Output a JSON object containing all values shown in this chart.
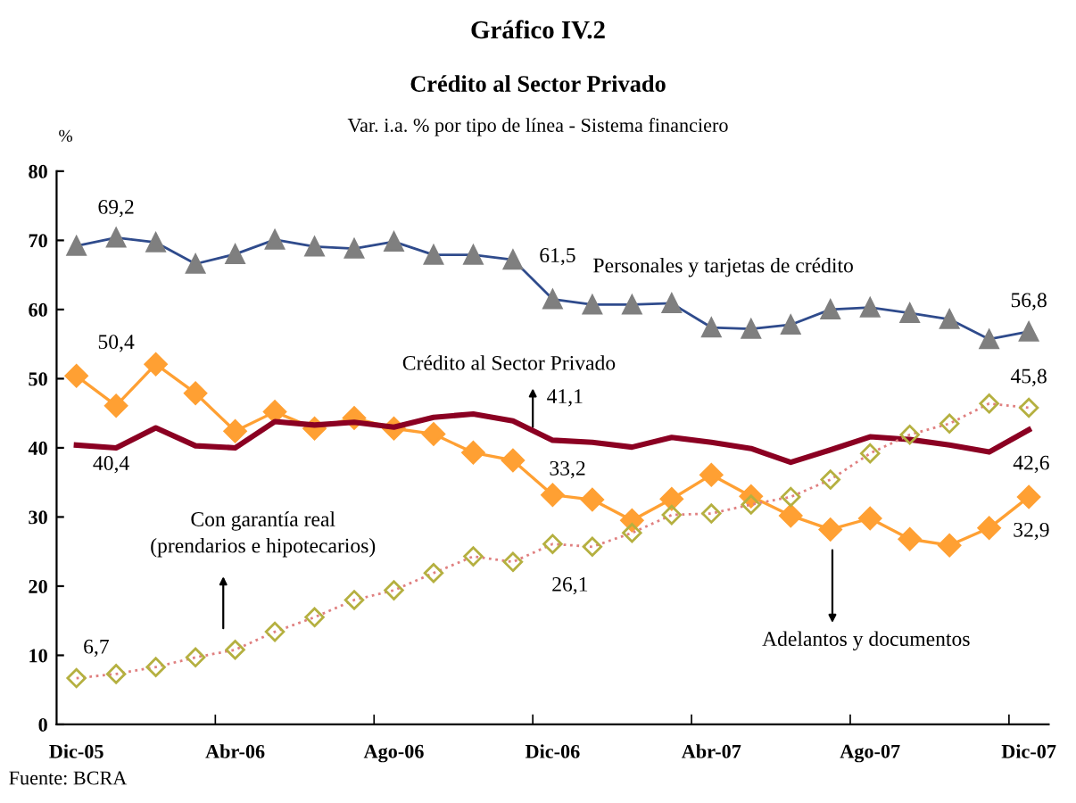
{
  "chart_data": {
    "type": "line",
    "title": "Gráfico IV.2",
    "subtitle": [
      "Crédito al Sector Privado",
      "Var. i.a. % por tipo de línea - Sistema financiero"
    ],
    "ylabel": "%",
    "categories": [
      "Dic-05",
      null,
      null,
      null,
      "Abr-06",
      null,
      null,
      null,
      "Ago-06",
      null,
      null,
      null,
      "Dic-06",
      null,
      null,
      null,
      "Abr-07",
      null,
      null,
      null,
      "Ago-07",
      null,
      null,
      null,
      "Dic-07"
    ],
    "ylim": [
      0,
      80
    ],
    "yticks": [
      0,
      10,
      20,
      30,
      40,
      50,
      60,
      70,
      80
    ],
    "grid": false,
    "legend": false,
    "series": [
      {
        "name": "Personales y tarjetas de crédito",
        "color": "#2f4b8c",
        "marker": "triangle",
        "line_style": "solid",
        "values": [
          69.2,
          70.4,
          69.7,
          66.6,
          68.0,
          70.1,
          69.1,
          68.8,
          69.8,
          67.9,
          67.9,
          67.2,
          61.5,
          60.7,
          60.7,
          60.9,
          57.4,
          57.2,
          57.8,
          60.0,
          60.3,
          59.5,
          58.6,
          55.7,
          56.8
        ],
        "value_labels": [
          "69,2",
          null,
          null,
          null,
          null,
          null,
          null,
          null,
          null,
          null,
          null,
          null,
          "61,5",
          null,
          null,
          null,
          null,
          null,
          null,
          null,
          null,
          null,
          null,
          null,
          "56,8"
        ]
      },
      {
        "name": "Adelantos y documentos",
        "color": "#ffa033",
        "marker": "diamond",
        "line_style": "solid",
        "values": [
          50.4,
          46.1,
          52.1,
          47.9,
          42.4,
          45.2,
          42.8,
          44.3,
          42.8,
          42.0,
          39.3,
          38.2,
          33.2,
          32.5,
          29.5,
          32.6,
          36.1,
          33.0,
          30.2,
          28.2,
          29.8,
          26.8,
          25.9,
          28.4,
          32.9
        ],
        "value_labels": [
          "50,4",
          null,
          null,
          null,
          null,
          null,
          null,
          null,
          null,
          null,
          null,
          null,
          "33,2",
          null,
          null,
          null,
          null,
          null,
          null,
          null,
          null,
          null,
          null,
          null,
          "32,9"
        ]
      },
      {
        "name": "Crédito al Sector Privado",
        "color": "#8b0022",
        "marker": "none",
        "line_style": "solid",
        "values": [
          40.4,
          40.0,
          42.9,
          40.3,
          40.0,
          43.8,
          43.3,
          43.7,
          43.0,
          44.4,
          44.9,
          43.9,
          41.1,
          40.8,
          40.1,
          41.5,
          40.8,
          39.9,
          37.9,
          39.7,
          41.6,
          41.2,
          40.4,
          39.4,
          42.6
        ],
        "value_labels": [
          "40,4",
          null,
          null,
          null,
          null,
          null,
          null,
          null,
          null,
          null,
          null,
          null,
          "41,1",
          null,
          null,
          null,
          null,
          null,
          null,
          null,
          null,
          null,
          null,
          null,
          "42,6"
        ]
      },
      {
        "name": "Con garantía real\n(prendarios e hipotecarios)",
        "color": "#b5b040",
        "marker": "diamond",
        "line_style": "dotted",
        "values": [
          6.7,
          7.3,
          8.3,
          9.7,
          10.8,
          13.4,
          15.5,
          18.0,
          19.4,
          21.9,
          24.3,
          23.5,
          26.1,
          25.7,
          27.7,
          30.3,
          30.5,
          31.8,
          32.9,
          35.4,
          39.2,
          41.9,
          43.5,
          46.4,
          45.8
        ],
        "value_labels": [
          "6,7",
          null,
          null,
          null,
          null,
          null,
          null,
          null,
          null,
          null,
          null,
          null,
          "26,1",
          null,
          null,
          null,
          null,
          null,
          null,
          null,
          null,
          null,
          null,
          null,
          "45,8"
        ]
      }
    ],
    "annotations": [
      "Fuente: BCRA"
    ]
  }
}
